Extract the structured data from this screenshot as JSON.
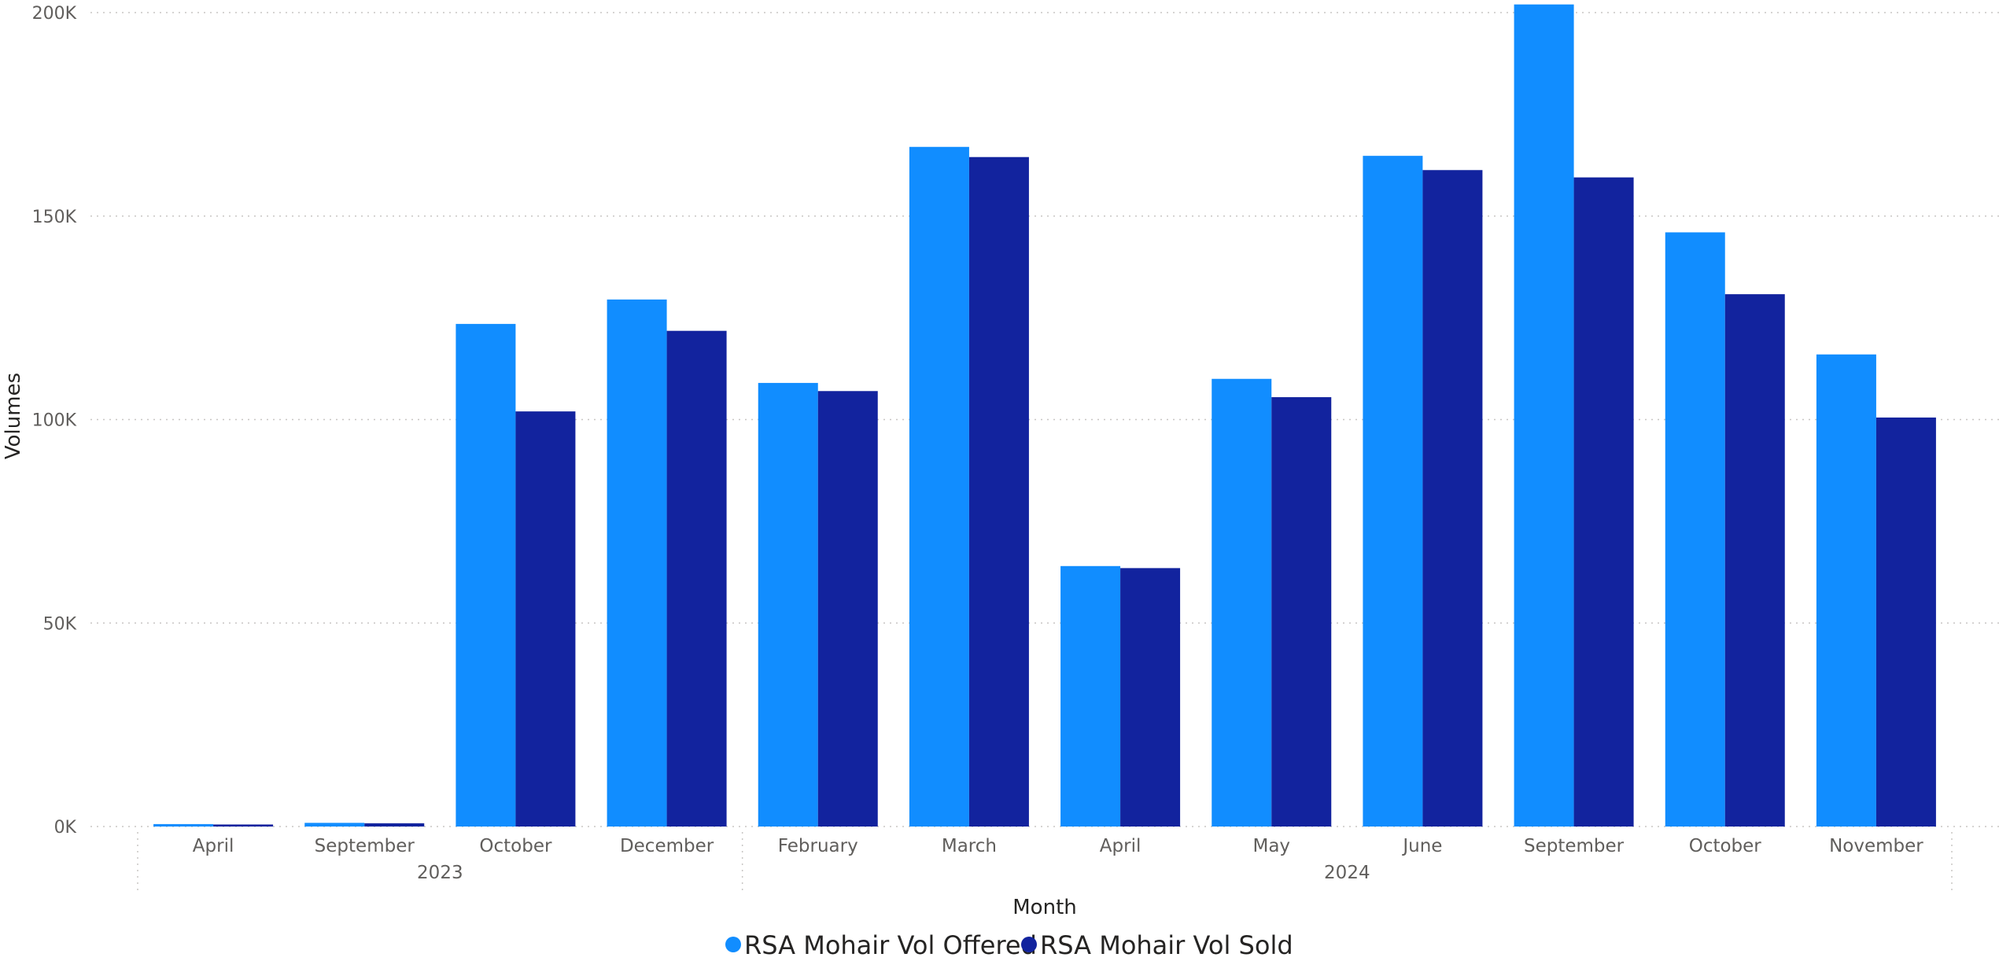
{
  "chart_data": {
    "type": "bar",
    "title": "",
    "xlabel": "Month",
    "ylabel": "Volumes",
    "ylim": [
      0,
      200000
    ],
    "yticks": [
      0,
      50000,
      100000,
      150000,
      200000
    ],
    "ytick_labels": [
      "0K",
      "50K",
      "100K",
      "150K",
      "200K"
    ],
    "grid": true,
    "legend_position": "bottom-center",
    "categories": [
      "April",
      "September",
      "October",
      "December",
      "February",
      "March",
      "April",
      "May",
      "June",
      "September",
      "October",
      "November"
    ],
    "groups": [
      {
        "label": "2023",
        "count": 4
      },
      {
        "label": "2024",
        "count": 8
      }
    ],
    "series": [
      {
        "name": "RSA Mohair Vol Offered",
        "color": "#118dff",
        "values": [
          600,
          900,
          123500,
          129500,
          109000,
          167000,
          64000,
          110000,
          164800,
          202000,
          146000,
          116000
        ]
      },
      {
        "name": "RSA Mohair Vol Sold",
        "color": "#12239e",
        "values": [
          500,
          800,
          102000,
          121800,
          107000,
          164500,
          63500,
          105500,
          161300,
          159500,
          130800,
          100500
        ]
      }
    ]
  }
}
